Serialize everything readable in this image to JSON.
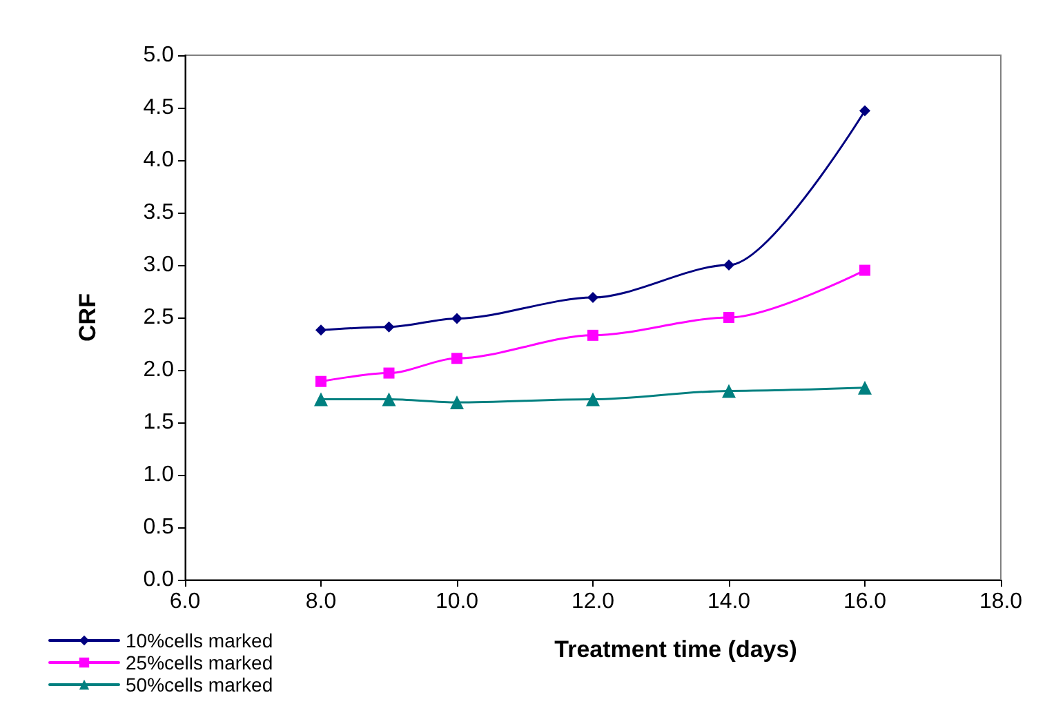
{
  "chart_data": {
    "type": "line",
    "xlabel": "Treatment time (days)",
    "ylabel": "CRF",
    "x": [
      8,
      9,
      10,
      12,
      14,
      16
    ],
    "series": [
      {
        "name": "10%cells marked",
        "color": "#000080",
        "marker": "diamond",
        "values": [
          2.38,
          2.41,
          2.49,
          2.69,
          3.0,
          4.47
        ]
      },
      {
        "name": "25%cells marked",
        "color": "#ff00ff",
        "marker": "square",
        "values": [
          1.89,
          1.97,
          2.11,
          2.33,
          2.5,
          2.95
        ]
      },
      {
        "name": "50%cells marked",
        "color": "#008080",
        "marker": "triangle",
        "values": [
          1.72,
          1.72,
          1.69,
          1.72,
          1.8,
          1.83
        ]
      }
    ],
    "xlim": [
      6,
      18
    ],
    "xticks": [
      {
        "value": 6,
        "label": "6.0"
      },
      {
        "value": 8,
        "label": "8.0"
      },
      {
        "value": 10,
        "label": "10.0"
      },
      {
        "value": 12,
        "label": "12.0"
      },
      {
        "value": 14,
        "label": "14.0"
      },
      {
        "value": 16,
        "label": "16.0"
      },
      {
        "value": 18,
        "label": "18.0"
      }
    ],
    "ylim": [
      0,
      5
    ],
    "yticks": [
      {
        "value": 0,
        "label": "0.0"
      },
      {
        "value": 0.5,
        "label": "0.5"
      },
      {
        "value": 1,
        "label": "1.0"
      },
      {
        "value": 1.5,
        "label": "1.5"
      },
      {
        "value": 2,
        "label": "2.0"
      },
      {
        "value": 2.5,
        "label": "2.5"
      },
      {
        "value": 3,
        "label": "3.0"
      },
      {
        "value": 3.5,
        "label": "3.5"
      },
      {
        "value": 4,
        "label": "4.0"
      },
      {
        "value": 4.5,
        "label": "4.5"
      },
      {
        "value": 5,
        "label": "5.0"
      }
    ],
    "grid": false,
    "legend": "bottom left",
    "line_style": "solid"
  }
}
